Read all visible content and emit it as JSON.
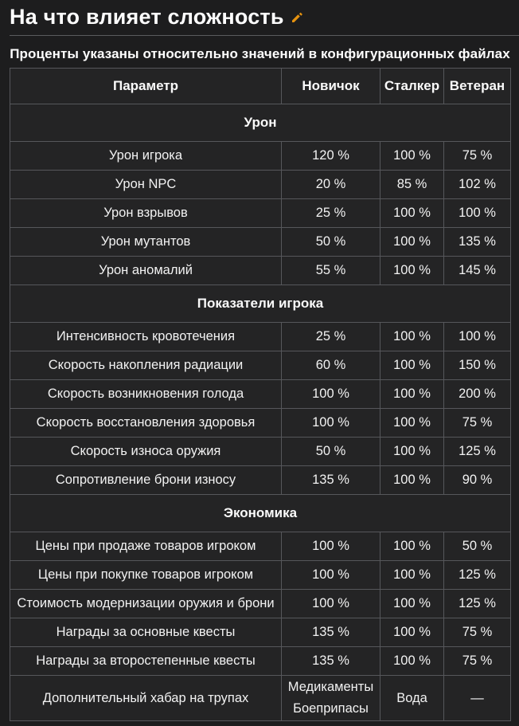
{
  "page": {
    "title": "На что влияет сложность",
    "caption": "Проценты указаны относительно значений в конфигурационных файлах"
  },
  "icons": {
    "edit_pencil": "pencil-icon"
  },
  "colors": {
    "page_bg": "#1d1d1e",
    "cell_bg": "#242425",
    "border": "#56575b",
    "text": "#f2f2f2",
    "accent_orange": "#e5920f"
  },
  "table": {
    "columns": [
      "Параметр",
      "Новичок",
      "Сталкер",
      "Ветеран"
    ],
    "sections": [
      {
        "title": "Урон",
        "rows": [
          {
            "param": "Урон игрока",
            "values": [
              "120 %",
              "100 %",
              "75 %"
            ]
          },
          {
            "param": "Урон NPC",
            "values": [
              "20 %",
              "85 %",
              "102 %"
            ]
          },
          {
            "param": "Урон взрывов",
            "values": [
              "25 %",
              "100 %",
              "100 %"
            ]
          },
          {
            "param": "Урон мутантов",
            "values": [
              "50 %",
              "100 %",
              "135 %"
            ]
          },
          {
            "param": "Урон аномалий",
            "values": [
              "55 %",
              "100 %",
              "145 %"
            ]
          }
        ]
      },
      {
        "title": "Показатели игрока",
        "rows": [
          {
            "param": "Интенсивность кровотечения",
            "values": [
              "25 %",
              "100 %",
              "100 %"
            ]
          },
          {
            "param": "Скорость накопления радиации",
            "values": [
              "60 %",
              "100 %",
              "150 %"
            ]
          },
          {
            "param": "Скорость возникновения голода",
            "values": [
              "100 %",
              "100 %",
              "200 %"
            ]
          },
          {
            "param": "Скорость восстановления здоровья",
            "values": [
              "100 %",
              "100 %",
              "75 %"
            ]
          },
          {
            "param": "Скорость износа оружия",
            "values": [
              "50 %",
              "100 %",
              "125 %"
            ]
          },
          {
            "param": "Сопротивление брони износу",
            "values": [
              "135 %",
              "100 %",
              "90 %"
            ]
          }
        ]
      },
      {
        "title": "Экономика",
        "rows": [
          {
            "param": "Цены при продаже товаров игроком",
            "values": [
              "100 %",
              "100 %",
              "50 %"
            ]
          },
          {
            "param": "Цены при покупке товаров игроком",
            "values": [
              "100 %",
              "100 %",
              "125 %"
            ]
          },
          {
            "param": "Стоимость модернизации оружия и брони",
            "values": [
              "100 %",
              "100 %",
              "125 %"
            ]
          },
          {
            "param": "Награды за основные квесты",
            "values": [
              "135 %",
              "100 %",
              "75 %"
            ]
          },
          {
            "param": "Награды за второстепенные квесты",
            "values": [
              "135 %",
              "100 %",
              "75 %"
            ]
          },
          {
            "param": "Дополнительный хабар на трупах",
            "values": [
              [
                "Медикаменты",
                "Боеприпасы"
              ],
              "Вода",
              "—"
            ]
          }
        ]
      }
    ]
  }
}
